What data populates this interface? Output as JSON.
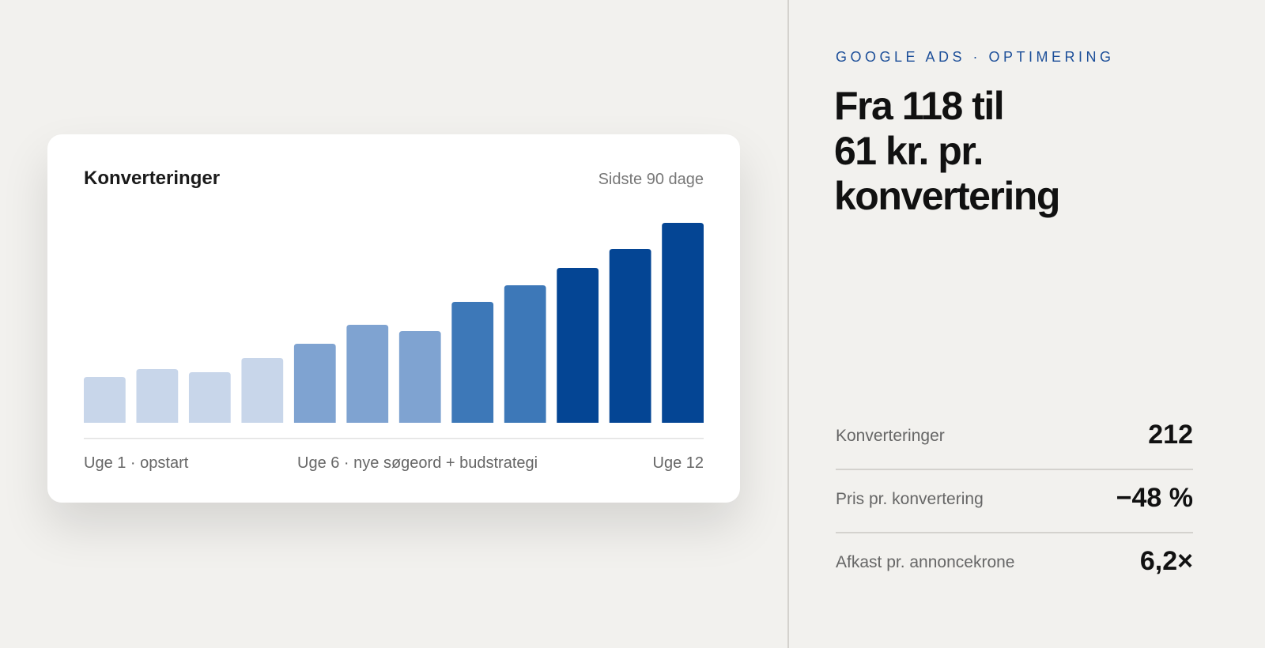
{
  "card": {
    "title": "Konverteringer",
    "period": "Sidste 90 dage",
    "labels": [
      "Uge 1 · opstart",
      "Uge 6 · nye søgeord + budstrategi",
      "Uge 12"
    ]
  },
  "chart_data": {
    "type": "bar",
    "values": [
      58,
      68,
      64,
      82,
      100,
      124,
      116,
      153,
      174,
      196,
      220,
      253
    ],
    "colors": [
      "#c8d6ea",
      "#c8d6ea",
      "#c8d6ea",
      "#c8d6ea",
      "#7fa3d1",
      "#7fa3d1",
      "#7fa3d1",
      "#3d78b8",
      "#3d78b8",
      "#044594",
      "#044594",
      "#044594"
    ],
    "ylim": [
      0,
      253
    ]
  },
  "panel": {
    "eyebrow": "GOOGLE ADS · OPTIMERING",
    "heading": [
      "Fra 118 til",
      "61 kr. pr.",
      "konvertering"
    ],
    "stats": [
      {
        "label": "Konverteringer",
        "value": "212"
      },
      {
        "label": "Pris pr. konvertering",
        "value": "−48 %"
      },
      {
        "label": "Afkast pr. annoncekrone",
        "value": "6,2×"
      }
    ]
  }
}
